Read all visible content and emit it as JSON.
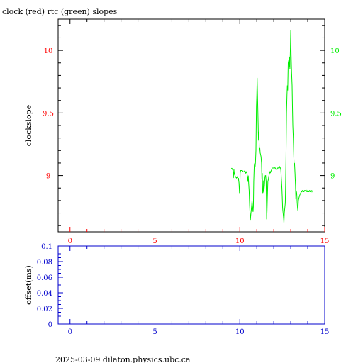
{
  "title": "clock (red) rtc (green) slopes",
  "footer": "2025-03-09  dilaton.physics.ubc.ca",
  "colors": {
    "frame": "#000000",
    "red_axis": "#ff0000",
    "green_axis": "#00ee00",
    "blue_axis": "#0000cc",
    "rtc_line": "#00ee00"
  },
  "chart_data": [
    {
      "type": "line",
      "name": "slopes",
      "ylabel": "clockslope",
      "xlim": [
        -0.7,
        15
      ],
      "ylim": [
        8.55,
        10.25
      ],
      "x_ticks": [
        0,
        5,
        10,
        15
      ],
      "x_tick_labels": [
        "0",
        "5",
        "10",
        "15"
      ],
      "y_ticks": [
        9,
        9.5,
        10
      ],
      "y_tick_labels": [
        "9",
        "9.5",
        "10"
      ],
      "series": [
        {
          "color": "green",
          "x": [
            9.5,
            9.55,
            9.58,
            9.62,
            9.65,
            9.68,
            9.72,
            9.75,
            9.8,
            9.85,
            9.9,
            9.92,
            9.95,
            9.98,
            10.0,
            10.02,
            10.05,
            10.1,
            10.15,
            10.2,
            10.25,
            10.3,
            10.35,
            10.4,
            10.42,
            10.45,
            10.48,
            10.5,
            10.52,
            10.55,
            10.58,
            10.62,
            10.65,
            10.7,
            10.72,
            10.75,
            10.78,
            10.8,
            10.82,
            10.85,
            10.88,
            10.9,
            10.92,
            10.95,
            10.98,
            11.0,
            11.02,
            11.05,
            11.08,
            11.1,
            11.12,
            11.15,
            11.18,
            11.2,
            11.22,
            11.25,
            11.28,
            11.3,
            11.32,
            11.35,
            11.38,
            11.4,
            11.42,
            11.45,
            11.48,
            11.5,
            11.52,
            11.55,
            11.58,
            11.6,
            11.62,
            11.65,
            11.68,
            11.7,
            11.72,
            11.75,
            11.78,
            11.8,
            11.82,
            11.85,
            11.88,
            11.9,
            11.92,
            11.95,
            11.98,
            12.0,
            12.02,
            12.05,
            12.08,
            12.1,
            12.12,
            12.15,
            12.18,
            12.2,
            12.22,
            12.25,
            12.28,
            12.3,
            12.32,
            12.35,
            12.38,
            12.4,
            12.42,
            12.45,
            12.48,
            12.5,
            12.52,
            12.55,
            12.58,
            12.6,
            12.62,
            12.65,
            12.68,
            12.7,
            12.72,
            12.75,
            12.78,
            12.8,
            12.82,
            12.85,
            12.88,
            12.9,
            12.92,
            12.95,
            12.98,
            13.0,
            13.02,
            13.05,
            13.08,
            13.1,
            13.12,
            13.15,
            13.18,
            13.2,
            13.22,
            13.25,
            13.28,
            13.3,
            13.32,
            13.35,
            13.38,
            13.4,
            13.42,
            13.45,
            13.48,
            13.5,
            13.52,
            13.55,
            13.58,
            13.6,
            13.62,
            13.65,
            13.68,
            13.7,
            13.72,
            13.75,
            13.78,
            13.8,
            13.82,
            13.85,
            13.88,
            13.9,
            13.92,
            13.95,
            13.98,
            14.0,
            14.02,
            14.05,
            14.08,
            14.1,
            14.12,
            14.15,
            14.18,
            14.2,
            14.22,
            14.25,
            14.28
          ],
          "values": [
            9.06,
            9.05,
            9.06,
            8.98,
            9.05,
            9.01,
            9.0,
            8.99,
            8.98,
            8.99,
            8.97,
            8.98,
            8.94,
            8.86,
            8.9,
            9.02,
            9.04,
            9.04,
            9.04,
            9.03,
            9.03,
            9.04,
            9.02,
            9.03,
            9.02,
            8.99,
            8.95,
            9.0,
            8.94,
            8.88,
            8.76,
            8.64,
            8.69,
            8.76,
            8.8,
            8.75,
            8.71,
            8.75,
            8.95,
            9.08,
            9.1,
            9.07,
            9.1,
            9.2,
            9.55,
            9.64,
            9.78,
            9.6,
            9.42,
            9.28,
            9.35,
            9.2,
            9.22,
            9.18,
            9.17,
            9.15,
            9.1,
            8.97,
            9.02,
            8.86,
            8.87,
            8.96,
            8.88,
            8.92,
            8.99,
            9.0,
            9.0,
            8.95,
            8.65,
            8.71,
            8.82,
            8.95,
            8.97,
            8.99,
            9.0,
            9.02,
            9.03,
            9.02,
            9.03,
            9.04,
            9.05,
            9.06,
            9.06,
            9.06,
            9.06,
            9.06,
            9.07,
            9.06,
            9.06,
            9.06,
            9.05,
            9.05,
            9.05,
            9.05,
            9.06,
            9.06,
            9.06,
            9.07,
            9.06,
            9.07,
            9.06,
            9.06,
            9.04,
            8.97,
            8.9,
            8.83,
            8.74,
            8.7,
            8.66,
            8.62,
            8.7,
            8.74,
            8.78,
            8.95,
            9.15,
            9.5,
            9.65,
            9.72,
            9.68,
            9.9,
            9.92,
            9.87,
            9.95,
            9.85,
            10.02,
            10.16,
            9.98,
            9.82,
            9.72,
            9.55,
            9.4,
            9.3,
            9.15,
            9.08,
            9.1,
            9.02,
            8.92,
            8.81,
            8.88,
            8.86,
            8.78,
            8.74,
            8.72,
            8.8,
            8.82,
            8.83,
            8.84,
            8.85,
            8.86,
            8.86,
            8.87,
            8.87,
            8.88,
            8.88,
            8.87,
            8.87,
            8.87,
            8.88,
            8.88,
            8.88,
            8.88,
            8.87,
            8.87,
            8.88,
            8.87,
            8.87,
            8.88,
            8.87,
            8.87,
            8.88,
            8.88,
            8.87,
            8.87,
            8.88,
            8.88,
            8.87,
            8.88
          ]
        }
      ],
      "grid": false
    },
    {
      "type": "line",
      "name": "offset",
      "ylabel": "offset(ms)",
      "xlim": [
        -0.7,
        15
      ],
      "ylim": [
        0,
        0.1
      ],
      "x_ticks": [
        0,
        5,
        10,
        15
      ],
      "x_tick_labels": [
        "0",
        "5",
        "10",
        "15"
      ],
      "y_ticks": [
        0,
        0.02,
        0.04,
        0.06,
        0.08,
        0.1
      ],
      "y_tick_labels": [
        "0",
        "0.02",
        "0.04",
        "0.06",
        "0.08",
        "0.1"
      ],
      "series": [],
      "grid": false
    }
  ]
}
